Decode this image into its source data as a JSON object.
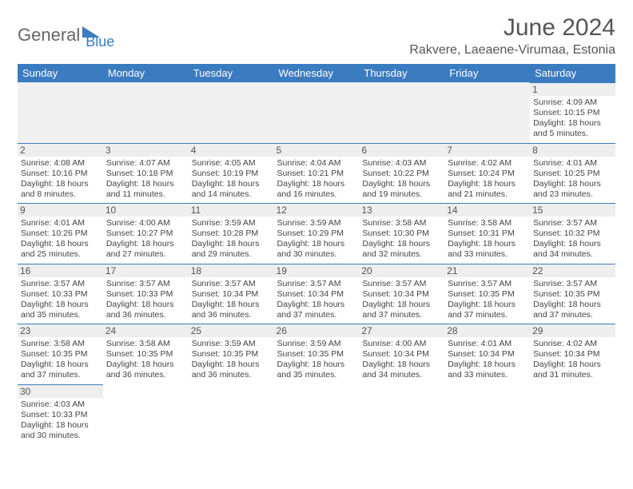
{
  "logo": {
    "general": "General",
    "blue": "Blue"
  },
  "title": "June 2024",
  "location": "Rakvere, Laeaene-Virumaa, Estonia",
  "colors": {
    "header_bg": "#3b7bbf",
    "header_text": "#ffffff",
    "day_bg": "#eeeeee",
    "border": "#3b7bbf",
    "text": "#444444"
  },
  "weekdays": [
    "Sunday",
    "Monday",
    "Tuesday",
    "Wednesday",
    "Thursday",
    "Friday",
    "Saturday"
  ],
  "weeks": [
    [
      null,
      null,
      null,
      null,
      null,
      null,
      {
        "d": "1",
        "sr": "4:09 AM",
        "ss": "10:15 PM",
        "dl": "18 hours and 5 minutes."
      }
    ],
    [
      {
        "d": "2",
        "sr": "4:08 AM",
        "ss": "10:16 PM",
        "dl": "18 hours and 8 minutes."
      },
      {
        "d": "3",
        "sr": "4:07 AM",
        "ss": "10:18 PM",
        "dl": "18 hours and 11 minutes."
      },
      {
        "d": "4",
        "sr": "4:05 AM",
        "ss": "10:19 PM",
        "dl": "18 hours and 14 minutes."
      },
      {
        "d": "5",
        "sr": "4:04 AM",
        "ss": "10:21 PM",
        "dl": "18 hours and 16 minutes."
      },
      {
        "d": "6",
        "sr": "4:03 AM",
        "ss": "10:22 PM",
        "dl": "18 hours and 19 minutes."
      },
      {
        "d": "7",
        "sr": "4:02 AM",
        "ss": "10:24 PM",
        "dl": "18 hours and 21 minutes."
      },
      {
        "d": "8",
        "sr": "4:01 AM",
        "ss": "10:25 PM",
        "dl": "18 hours and 23 minutes."
      }
    ],
    [
      {
        "d": "9",
        "sr": "4:01 AM",
        "ss": "10:26 PM",
        "dl": "18 hours and 25 minutes."
      },
      {
        "d": "10",
        "sr": "4:00 AM",
        "ss": "10:27 PM",
        "dl": "18 hours and 27 minutes."
      },
      {
        "d": "11",
        "sr": "3:59 AM",
        "ss": "10:28 PM",
        "dl": "18 hours and 29 minutes."
      },
      {
        "d": "12",
        "sr": "3:59 AM",
        "ss": "10:29 PM",
        "dl": "18 hours and 30 minutes."
      },
      {
        "d": "13",
        "sr": "3:58 AM",
        "ss": "10:30 PM",
        "dl": "18 hours and 32 minutes."
      },
      {
        "d": "14",
        "sr": "3:58 AM",
        "ss": "10:31 PM",
        "dl": "18 hours and 33 minutes."
      },
      {
        "d": "15",
        "sr": "3:57 AM",
        "ss": "10:32 PM",
        "dl": "18 hours and 34 minutes."
      }
    ],
    [
      {
        "d": "16",
        "sr": "3:57 AM",
        "ss": "10:33 PM",
        "dl": "18 hours and 35 minutes."
      },
      {
        "d": "17",
        "sr": "3:57 AM",
        "ss": "10:33 PM",
        "dl": "18 hours and 36 minutes."
      },
      {
        "d": "18",
        "sr": "3:57 AM",
        "ss": "10:34 PM",
        "dl": "18 hours and 36 minutes."
      },
      {
        "d": "19",
        "sr": "3:57 AM",
        "ss": "10:34 PM",
        "dl": "18 hours and 37 minutes."
      },
      {
        "d": "20",
        "sr": "3:57 AM",
        "ss": "10:34 PM",
        "dl": "18 hours and 37 minutes."
      },
      {
        "d": "21",
        "sr": "3:57 AM",
        "ss": "10:35 PM",
        "dl": "18 hours and 37 minutes."
      },
      {
        "d": "22",
        "sr": "3:57 AM",
        "ss": "10:35 PM",
        "dl": "18 hours and 37 minutes."
      }
    ],
    [
      {
        "d": "23",
        "sr": "3:58 AM",
        "ss": "10:35 PM",
        "dl": "18 hours and 37 minutes."
      },
      {
        "d": "24",
        "sr": "3:58 AM",
        "ss": "10:35 PM",
        "dl": "18 hours and 36 minutes."
      },
      {
        "d": "25",
        "sr": "3:59 AM",
        "ss": "10:35 PM",
        "dl": "18 hours and 36 minutes."
      },
      {
        "d": "26",
        "sr": "3:59 AM",
        "ss": "10:35 PM",
        "dl": "18 hours and 35 minutes."
      },
      {
        "d": "27",
        "sr": "4:00 AM",
        "ss": "10:34 PM",
        "dl": "18 hours and 34 minutes."
      },
      {
        "d": "28",
        "sr": "4:01 AM",
        "ss": "10:34 PM",
        "dl": "18 hours and 33 minutes."
      },
      {
        "d": "29",
        "sr": "4:02 AM",
        "ss": "10:34 PM",
        "dl": "18 hours and 31 minutes."
      }
    ],
    [
      {
        "d": "30",
        "sr": "4:03 AM",
        "ss": "10:33 PM",
        "dl": "18 hours and 30 minutes."
      },
      null,
      null,
      null,
      null,
      null,
      null
    ]
  ],
  "labels": {
    "sunrise": "Sunrise:",
    "sunset": "Sunset:",
    "daylight": "Daylight:"
  }
}
